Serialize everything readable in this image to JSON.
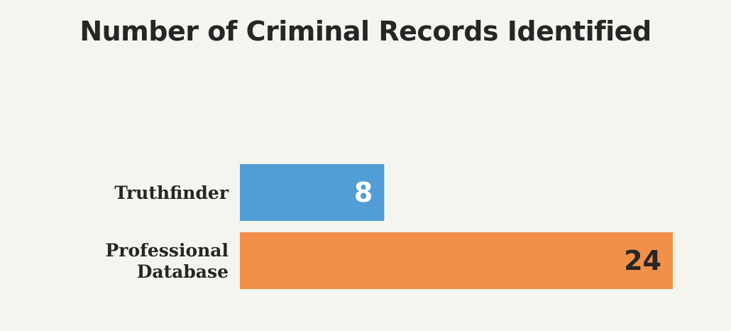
{
  "chart_data": {
    "type": "bar",
    "orientation": "horizontal",
    "title": "Number of Criminal Records Identified",
    "categories": [
      "Truthfinder",
      "Professional Database"
    ],
    "category_label_lines": [
      [
        "Truthfinder"
      ],
      [
        "Professional",
        "Database"
      ]
    ],
    "values": [
      8,
      24
    ],
    "value_labels": [
      "8",
      "24"
    ],
    "xlim": [
      0,
      24
    ],
    "grid": false,
    "legend": "none"
  },
  "colors": {
    "background": "#f5f5f0",
    "title": "#262626",
    "bars": [
      "#529dd6",
      "#f2904a"
    ],
    "value_label_colors": [
      "#ffffff",
      "#262626"
    ],
    "category_label": "#262626"
  }
}
